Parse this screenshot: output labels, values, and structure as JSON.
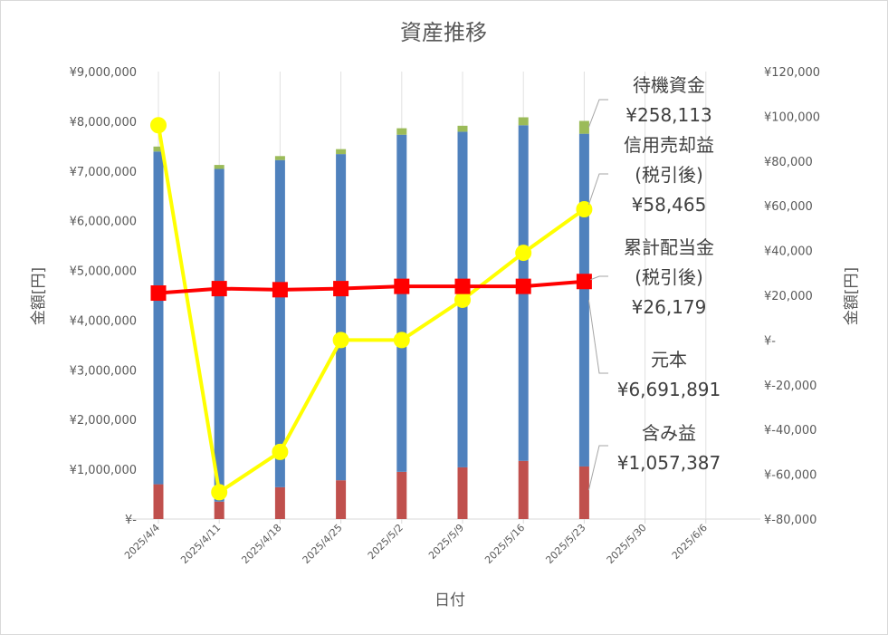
{
  "chart_data": {
    "type": "bar",
    "title": "資産推移",
    "xlabel": "日付",
    "ylabel": "金額[円]",
    "y2label": "金額[円]",
    "categories": [
      "2025/4/4",
      "2025/4/11",
      "2025/4/18",
      "2025/4/25",
      "2025/5/2",
      "2025/5/9",
      "2025/5/16",
      "2025/5/23",
      "2025/5/30",
      "2025/6/6"
    ],
    "ylim": [
      0,
      9000000
    ],
    "y2lim": [
      -80000,
      120000
    ],
    "yticks": [
      "¥-",
      "¥1,000,000",
      "¥2,000,000",
      "¥3,000,000",
      "¥4,000,000",
      "¥5,000,000",
      "¥6,000,000",
      "¥7,000,000",
      "¥8,000,000",
      "¥9,000,000"
    ],
    "y2ticks": [
      "¥-80,000",
      "¥-60,000",
      "¥-40,000",
      "¥-20,000",
      "¥-",
      "¥20,000",
      "¥40,000",
      "¥60,000",
      "¥80,000",
      "¥100,000",
      "¥120,000"
    ],
    "grid": false,
    "stacked_bars": [
      {
        "name": "含み益",
        "color": "#c0504d",
        "values": [
          700000,
          350000,
          640000,
          780000,
          950000,
          1040000,
          1170000,
          1057387,
          null,
          null
        ]
      },
      {
        "name": "元本",
        "color": "#4f81bd",
        "values": [
          6691891,
          6691891,
          6580000,
          6560000,
          6780000,
          6750000,
          6750000,
          6691891,
          null,
          null
        ]
      },
      {
        "name": "待機資金",
        "color": "#9bbb59",
        "values": [
          100000,
          80000,
          80000,
          100000,
          130000,
          120000,
          160000,
          258113,
          null,
          null
        ]
      }
    ],
    "lines": [
      {
        "name": "信用売却益(税引後)",
        "axis": "secondary",
        "color": "#ffff00",
        "marker": "circle",
        "values": [
          96000,
          -68000,
          -50000,
          0,
          0,
          18000,
          39000,
          58465,
          null,
          null
        ]
      },
      {
        "name": "累計配当金(税引後)",
        "axis": "secondary",
        "color": "#ff0000",
        "marker": "square",
        "values": [
          21000,
          23000,
          22500,
          23000,
          24000,
          24000,
          24000,
          26179,
          null,
          null
        ]
      }
    ],
    "annotations": [
      {
        "lines": [
          "待機資金",
          "¥258,113"
        ]
      },
      {
        "lines": [
          "信用売却益",
          "(税引後)",
          "¥58,465"
        ]
      },
      {
        "lines": [
          "累計配当金",
          "(税引後)",
          "¥26,179"
        ]
      },
      {
        "lines": [
          "元本",
          "¥6,691,891"
        ]
      },
      {
        "lines": [
          "含み益",
          "¥1,057,387"
        ]
      }
    ]
  }
}
